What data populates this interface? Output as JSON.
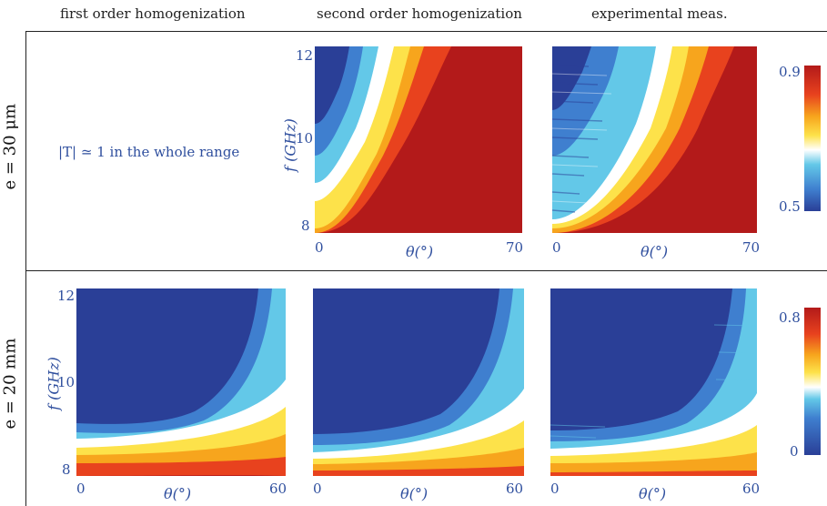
{
  "columns": {
    "first": "first order homogenization",
    "second": "second order homogenization",
    "experimental": "experimental meas."
  },
  "rows": {
    "top": "e = 30 μm",
    "bottom": "e = 20 mm"
  },
  "note_top_first": "|T| ≃ 1 in the whole range",
  "axes": {
    "x_label": "θ(°)",
    "y_label": "f (GHz)"
  },
  "colormap": [
    "#2a3f97",
    "#3f7fcf",
    "#63c8e8",
    "#ffffff",
    "#fde24a",
    "#f7a51d",
    "#e8421e",
    "#b31a1a"
  ],
  "chart_data": [
    {
      "type": "heatmap",
      "panel": "top-second",
      "xlim": [
        0,
        70
      ],
      "ylim": [
        8,
        12
      ],
      "xticks": [
        "0",
        "70"
      ],
      "yticks": [
        "8",
        "10",
        "12"
      ],
      "color_range": [
        0.5,
        0.9
      ]
    },
    {
      "type": "heatmap",
      "panel": "top-experimental",
      "xlim": [
        0,
        70
      ],
      "ylim": [
        8,
        12
      ],
      "xticks": [
        "0",
        "70"
      ],
      "yticks": [],
      "color_range": [
        0.5,
        0.9
      ],
      "colorbar_ticks": [
        "0.9",
        "0.5"
      ]
    },
    {
      "type": "heatmap",
      "panel": "bottom-first",
      "xlim": [
        0,
        60
      ],
      "ylim": [
        8,
        12
      ],
      "xticks": [
        "0",
        "60"
      ],
      "yticks": [
        "8",
        "10",
        "12"
      ],
      "color_range": [
        0,
        0.8
      ]
    },
    {
      "type": "heatmap",
      "panel": "bottom-second",
      "xlim": [
        0,
        60
      ],
      "ylim": [
        8,
        12
      ],
      "xticks": [
        "0",
        "60"
      ],
      "yticks": [],
      "color_range": [
        0,
        0.8
      ]
    },
    {
      "type": "heatmap",
      "panel": "bottom-experimental",
      "xlim": [
        0,
        60
      ],
      "ylim": [
        8,
        12
      ],
      "xticks": [
        "0",
        "60"
      ],
      "yticks": [],
      "color_range": [
        0,
        0.8
      ],
      "colorbar_ticks": [
        "0.8",
        "0"
      ]
    }
  ]
}
